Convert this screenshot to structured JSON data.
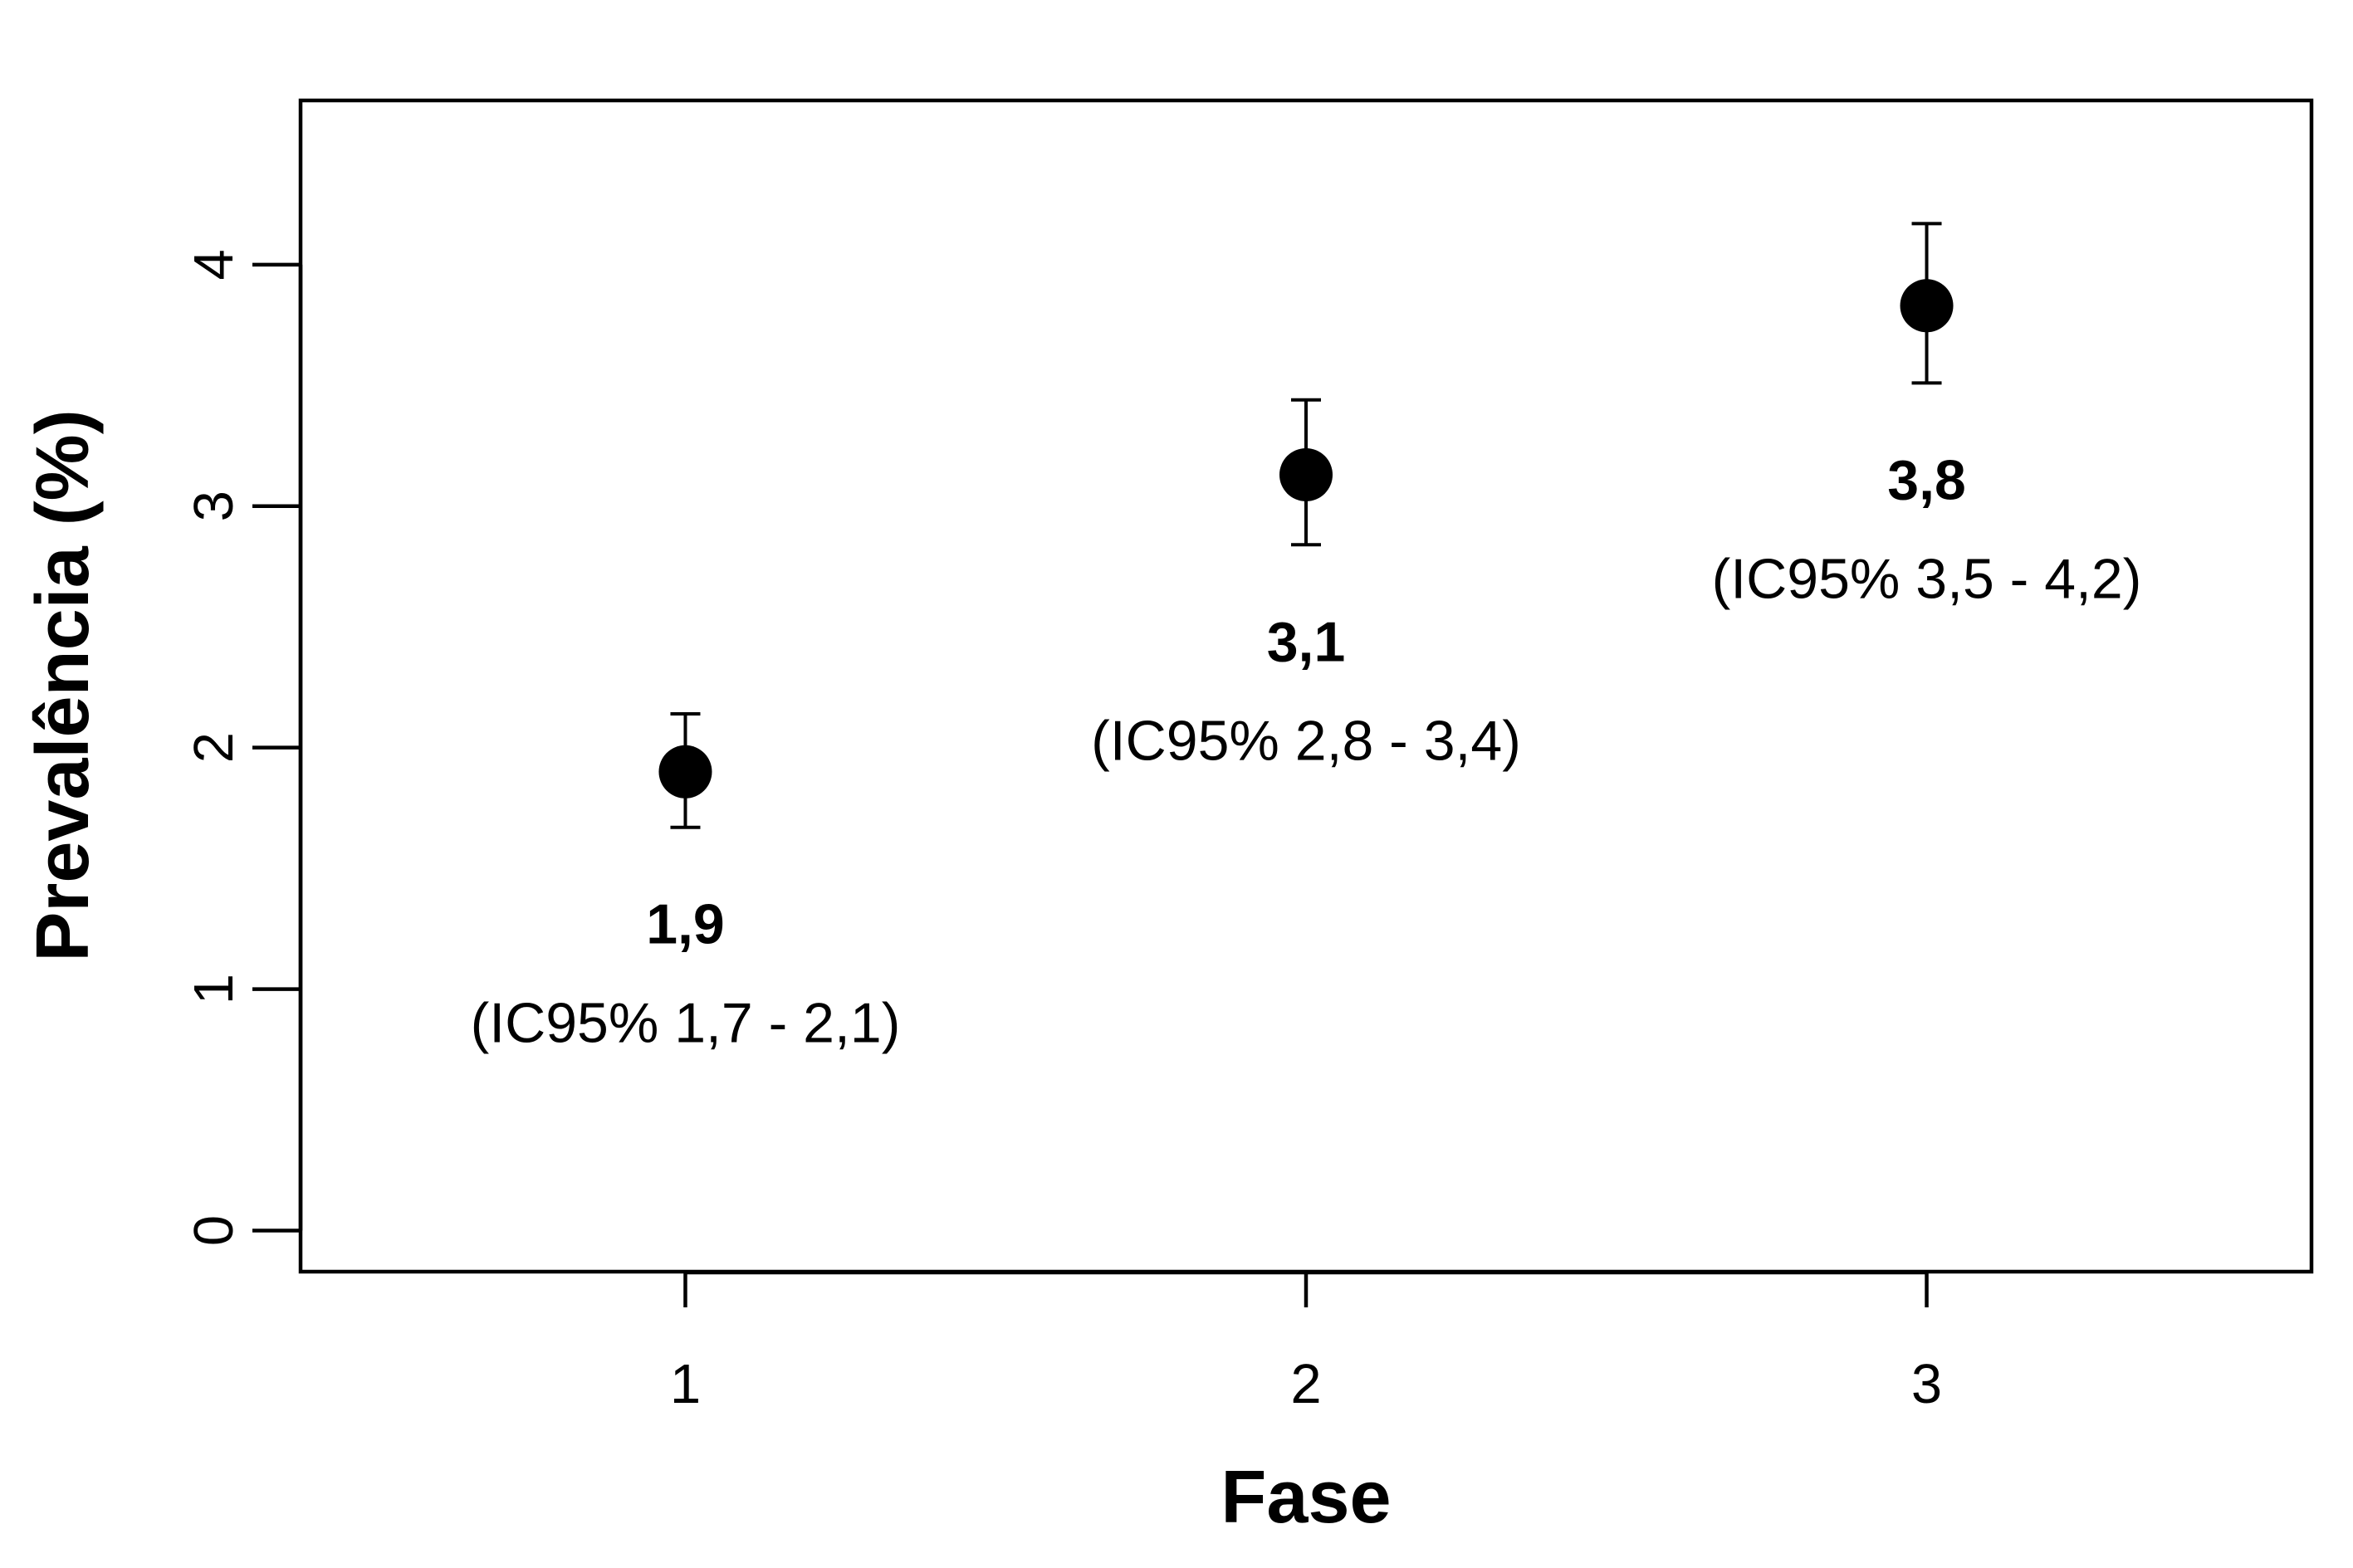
{
  "chart_data": {
    "type": "scatter",
    "title": "",
    "xlabel": "Fase",
    "ylabel": "Prevalência (%)",
    "x_ticks": [
      "1",
      "2",
      "3"
    ],
    "y_ticks": [
      "0",
      "1",
      "2",
      "3",
      "4"
    ],
    "xlim": [
      0.38,
      3.62
    ],
    "ylim": [
      -0.17,
      4.68
    ],
    "grid": false,
    "points": [
      {
        "x": 1,
        "y": 1.9,
        "ci_low": 1.67,
        "ci_high": 2.14,
        "value_label": "1,9",
        "ci_label": "(IC95% 1,7 - 2,1)"
      },
      {
        "x": 2,
        "y": 3.13,
        "ci_low": 2.84,
        "ci_high": 3.44,
        "value_label": "3,1",
        "ci_label": "(IC95% 2,8 - 3,4)"
      },
      {
        "x": 3,
        "y": 3.83,
        "ci_low": 3.51,
        "ci_high": 4.17,
        "value_label": "3,8",
        "ci_label": "(IC95% 3,5 - 4,2)"
      }
    ],
    "colors": {
      "marker": "#000000",
      "axis": "#000000"
    }
  }
}
